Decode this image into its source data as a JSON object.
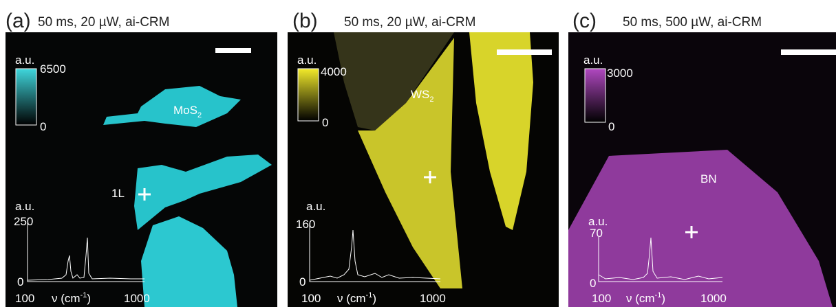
{
  "panels": [
    {
      "letter": "(a)",
      "title": "50 ms, 20 µW, ai-CRM",
      "colorbar": {
        "unit": "a.u.",
        "max": 6500,
        "min": 0
      },
      "material": {
        "name": "MoS",
        "subscript": "2"
      },
      "layer": "1L",
      "inset": {
        "unit": "a.u.",
        "ymax": 250,
        "ymin": 0,
        "xmin": 100,
        "xlabel": "ν (cm",
        "xlabel_sup": "-1",
        "xlabel_end": ")",
        "xmax": 1000
      }
    },
    {
      "letter": "(b)",
      "title": "50 ms, 20 µW, ai-CRM",
      "colorbar": {
        "unit": "a.u.",
        "max": 4000,
        "min": 0
      },
      "material": {
        "name": "WS",
        "subscript": "2"
      },
      "inset": {
        "unit": "a.u.",
        "ymax": 160,
        "ymin": 0,
        "xmin": 100,
        "xlabel": "ν (cm",
        "xlabel_sup": "-1",
        "xlabel_end": ")",
        "xmax": 1000
      }
    },
    {
      "letter": "(c)",
      "title": "50 ms, 500 µW, ai-CRM",
      "colorbar": {
        "unit": "a.u.",
        "max": 3000,
        "min": 0
      },
      "material": {
        "name": "BN"
      },
      "inset": {
        "unit": "a.u.",
        "ymax": 70,
        "ymin": 0,
        "xmin": 100,
        "xlabel": "ν (cm",
        "xlabel_sup": "-1",
        "xlabel_end": ")",
        "xmax": 1000
      }
    }
  ]
}
